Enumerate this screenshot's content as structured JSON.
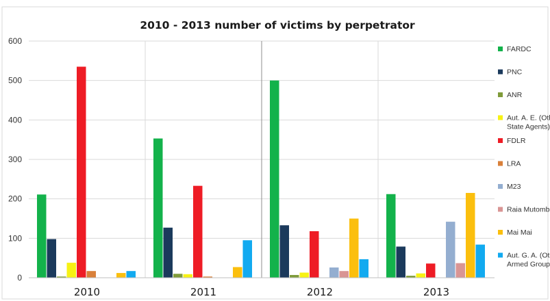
{
  "chart_data": {
    "type": "bar",
    "title": "2010 - 2013 number of victims by perpetrator",
    "xlabel": "",
    "ylabel": "",
    "categories": [
      "2010",
      "2011",
      "2012",
      "2013"
    ],
    "ylim": [
      0,
      600
    ],
    "yticks": [
      0,
      100,
      200,
      300,
      400,
      500,
      600
    ],
    "grid": "horizontal",
    "legend_position": "right",
    "series": [
      {
        "name": "FARDC",
        "legend_lines": [
          "FARDC"
        ],
        "color": "#13b24b",
        "values": [
          211,
          353,
          500,
          212
        ]
      },
      {
        "name": "PNC",
        "legend_lines": [
          "PNC"
        ],
        "color": "#1b3a5c",
        "values": [
          98,
          127,
          133,
          79
        ]
      },
      {
        "name": "ANR",
        "legend_lines": [
          "ANR"
        ],
        "color": "#7f9b3a",
        "values": [
          3,
          10,
          7,
          5
        ]
      },
      {
        "name": "Aut. A. E. (Other State Agents)",
        "legend_lines": [
          "Aut. A. E. (Other",
          "State Agents)"
        ],
        "color": "#f7f214",
        "values": [
          38,
          9,
          13,
          11
        ]
      },
      {
        "name": "FDLR",
        "legend_lines": [
          "FDLR"
        ],
        "color": "#ee1c25",
        "values": [
          535,
          233,
          118,
          36
        ]
      },
      {
        "name": "LRA",
        "legend_lines": [
          "LRA"
        ],
        "color": "#d9803a",
        "values": [
          17,
          3,
          0,
          0
        ]
      },
      {
        "name": "M23",
        "legend_lines": [
          "M23"
        ],
        "color": "#94aed0",
        "values": [
          0,
          0,
          26,
          142
        ]
      },
      {
        "name": "Raia Mutomboki",
        "legend_lines": [
          "Raia Mutombok"
        ],
        "color": "#d99594",
        "values": [
          0,
          0,
          17,
          37
        ]
      },
      {
        "name": "Mai Mai",
        "legend_lines": [
          "Mai Mai"
        ],
        "color": "#fbbf0e",
        "values": [
          12,
          27,
          150,
          215
        ]
      },
      {
        "name": "Aut. G. A. (Other Armed Groups)",
        "legend_lines": [
          "Aut. G. A. (Othe",
          "Armed Groups)"
        ],
        "color": "#12aaf0",
        "values": [
          17,
          95,
          47,
          84
        ]
      }
    ]
  }
}
